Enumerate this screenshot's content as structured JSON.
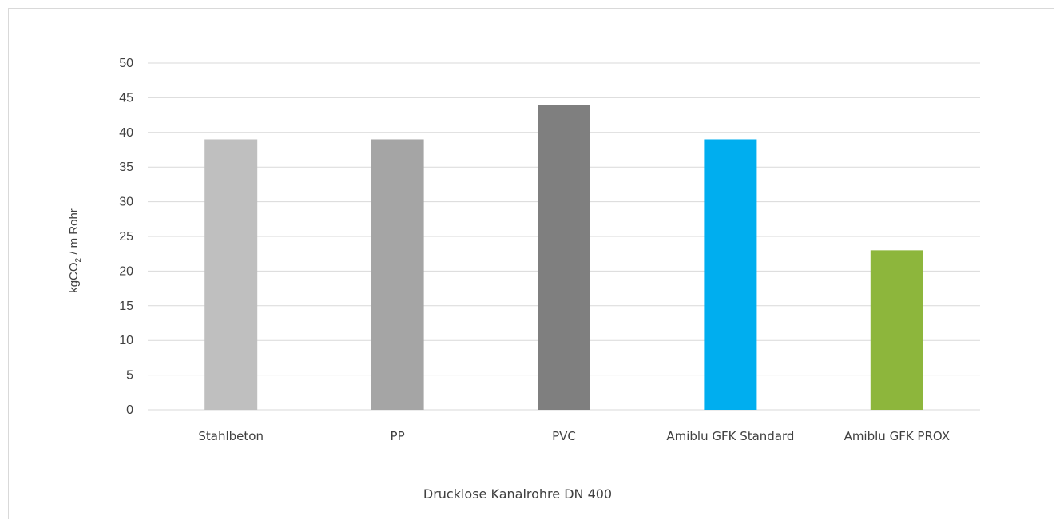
{
  "chart_data": {
    "type": "bar",
    "categories": [
      "Stahlbeton",
      "PP",
      "PVC",
      "Amiblu GFK Standard",
      "Amiblu GFK PROX"
    ],
    "values": [
      39,
      39,
      44,
      39,
      23
    ],
    "colors": [
      "#bfbfbf",
      "#a5a5a5",
      "#7f7f7f",
      "#00aeef",
      "#8db63c"
    ],
    "title": "",
    "xlabel": "Drucklose Kanalrohre DN 400",
    "ylabel_main": "kgCO",
    "ylabel_sub": "2",
    "ylabel_rest": " / m Rohr",
    "ylim": [
      0,
      50
    ],
    "yticks": [
      "0",
      "5",
      "10",
      "15",
      "20",
      "25",
      "30",
      "35",
      "40",
      "45",
      "50"
    ],
    "grid": true,
    "gridline_color": "#d9d9d9"
  }
}
